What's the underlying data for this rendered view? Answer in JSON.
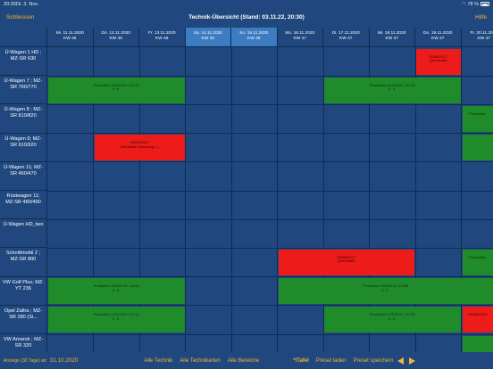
{
  "status": {
    "time": "20:30",
    "date": "Di. 3. Nov.",
    "battery": "78 %"
  },
  "nav": {
    "close_label": "Schliessen",
    "title": "Technik-Übersicht (Stand: 03.11.22, 20:30)",
    "help_label": "Hilfe"
  },
  "days": [
    {
      "line1": "Mi. 11.11.2020",
      "line2": "KW 46",
      "weekend": false
    },
    {
      "line1": "Do. 12.11.2020",
      "line2": "KW 46",
      "weekend": false
    },
    {
      "line1": "Fr. 13.11.2020",
      "line2": "KW 46",
      "weekend": false
    },
    {
      "line1": "Sa. 14.11.2020",
      "line2": "KW 46",
      "weekend": true
    },
    {
      "line1": "So. 15.11.2020",
      "line2": "KW 46",
      "weekend": true
    },
    {
      "line1": "Mo. 16.11.2020",
      "line2": "KW 47",
      "weekend": false
    },
    {
      "line1": "Di. 17.11.2020",
      "line2": "KW 47",
      "weekend": false
    },
    {
      "line1": "Mi. 18.11.2020",
      "line2": "KW 47",
      "weekend": false
    },
    {
      "line1": "Do. 19.11.2020",
      "line2": "KW 47",
      "weekend": false
    },
    {
      "line1": "Fr. 20.11.2020",
      "line2": "KW 47",
      "weekend": false
    }
  ],
  "vehicles": [
    "Ü-Wagen 1 HD ; MZ-SR 630",
    "Ü-Wagen 7 ; MZ-SR 760/770",
    "Ü-Wagen 8 ; MZ-SR 810/820",
    "Ü-Wagen 9; MZ-SR 910/920",
    "Ü-Wagen 11; MZ-SR 460/470",
    "Rüstwagen 11; MZ-SR 480/490",
    "Ü-Wagen HD_two",
    "Schnittmobil 2 ; MZ-SR 800",
    "VW Golf Plus; MZ-YT 236",
    "Opel Zafira ; MZ-SR 280 (Si...",
    "VW Amarok ; MZ-SR 320"
  ],
  "bookings": [
    {
      "row": 0,
      "start": 8,
      "end": 9,
      "color": "red",
      "line1": "SR0832017",
      "line2": "(Werkstatt)"
    },
    {
      "row": 1,
      "start": 0,
      "end": 3,
      "color": "green",
      "line1": "Produktion 20110110 -11714",
      "line2": "K. K."
    },
    {
      "row": 1,
      "start": 6,
      "end": 9,
      "color": "green",
      "line1": "Produktion 20110110 -11715",
      "line2": "K. K."
    },
    {
      "row": 2,
      "start": 9,
      "end": 10.2,
      "color": "green",
      "line1": "Produktion",
      "line2": ""
    },
    {
      "row": 3,
      "start": 1,
      "end": 3,
      "color": "red",
      "line1": "SR0832021",
      "line2": "(Werkstatt Zulassung/...)"
    },
    {
      "row": 3,
      "start": 9,
      "end": 10.2,
      "color": "green",
      "line1": "",
      "line2": ""
    },
    {
      "row": 7,
      "start": 5,
      "end": 8,
      "color": "red",
      "line1": "SR0832017",
      "line2": "(Werkstatt)"
    },
    {
      "row": 7,
      "start": 9,
      "end": 10.2,
      "color": "green",
      "line1": "Produktion",
      "line2": ""
    },
    {
      "row": 8,
      "start": 0,
      "end": 3,
      "color": "green",
      "line1": "Produktion 20104115 -11838",
      "line2": "K. K."
    },
    {
      "row": 8,
      "start": 5,
      "end": 10.2,
      "color": "green",
      "line1": "Produktion 20104115 -11838",
      "line2": "K. K."
    },
    {
      "row": 9,
      "start": 0,
      "end": 3,
      "color": "green",
      "line1": "Produktion 20110110 -11714",
      "line2": "K. K."
    },
    {
      "row": 9,
      "start": 6,
      "end": 9,
      "color": "green",
      "line1": "Produktion 20110110 -11715",
      "line2": "K. K."
    },
    {
      "row": 9,
      "start": 9,
      "end": 10.2,
      "color": "red",
      "line1": "SR0832019",
      "line2": ""
    },
    {
      "row": 10,
      "start": 9,
      "end": 10.2,
      "color": "green",
      "line1": "",
      "line2": ""
    }
  ],
  "bottom": {
    "display_label": "Anzeige (30 Tage) ab:",
    "display_date": "31.10.2020",
    "all_tech": "Alle Technik",
    "all_tech_cards": "Alle Technikarten",
    "all_areas": "Alle Bereiche",
    "itafel": "*iTafel",
    "preset_load": "Preset laden",
    "preset_save": "Preset speichern"
  },
  "colors": {
    "background": "#20487e",
    "weekend": "#3c7cc0",
    "accent": "#f2b233",
    "green": "#1f8b2a",
    "red": "#ee1b1b"
  }
}
